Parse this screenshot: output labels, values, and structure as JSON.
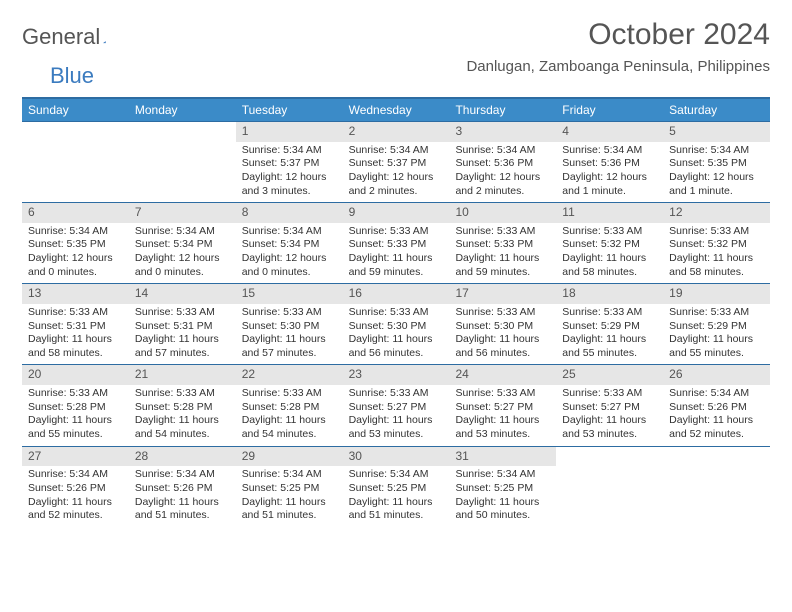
{
  "logo": {
    "word1": "General",
    "word2": "Blue"
  },
  "title": "October 2024",
  "location": "Danlugan, Zamboanga Peninsula, Philippines",
  "colors": {
    "header_bg": "#3b8bc8",
    "header_text": "#ffffff",
    "border": "#2d6ca2",
    "daynum_bg": "#e6e6e6",
    "text": "#333333",
    "title_text": "#555555",
    "logo_gray": "#555555",
    "logo_blue": "#3b7bbf"
  },
  "day_headers": [
    "Sunday",
    "Monday",
    "Tuesday",
    "Wednesday",
    "Thursday",
    "Friday",
    "Saturday"
  ],
  "weeks": [
    [
      {
        "num": "",
        "lines": []
      },
      {
        "num": "",
        "lines": []
      },
      {
        "num": "1",
        "lines": [
          "Sunrise: 5:34 AM",
          "Sunset: 5:37 PM",
          "Daylight: 12 hours and 3 minutes."
        ]
      },
      {
        "num": "2",
        "lines": [
          "Sunrise: 5:34 AM",
          "Sunset: 5:37 PM",
          "Daylight: 12 hours and 2 minutes."
        ]
      },
      {
        "num": "3",
        "lines": [
          "Sunrise: 5:34 AM",
          "Sunset: 5:36 PM",
          "Daylight: 12 hours and 2 minutes."
        ]
      },
      {
        "num": "4",
        "lines": [
          "Sunrise: 5:34 AM",
          "Sunset: 5:36 PM",
          "Daylight: 12 hours and 1 minute."
        ]
      },
      {
        "num": "5",
        "lines": [
          "Sunrise: 5:34 AM",
          "Sunset: 5:35 PM",
          "Daylight: 12 hours and 1 minute."
        ]
      }
    ],
    [
      {
        "num": "6",
        "lines": [
          "Sunrise: 5:34 AM",
          "Sunset: 5:35 PM",
          "Daylight: 12 hours and 0 minutes."
        ]
      },
      {
        "num": "7",
        "lines": [
          "Sunrise: 5:34 AM",
          "Sunset: 5:34 PM",
          "Daylight: 12 hours and 0 minutes."
        ]
      },
      {
        "num": "8",
        "lines": [
          "Sunrise: 5:34 AM",
          "Sunset: 5:34 PM",
          "Daylight: 12 hours and 0 minutes."
        ]
      },
      {
        "num": "9",
        "lines": [
          "Sunrise: 5:33 AM",
          "Sunset: 5:33 PM",
          "Daylight: 11 hours and 59 minutes."
        ]
      },
      {
        "num": "10",
        "lines": [
          "Sunrise: 5:33 AM",
          "Sunset: 5:33 PM",
          "Daylight: 11 hours and 59 minutes."
        ]
      },
      {
        "num": "11",
        "lines": [
          "Sunrise: 5:33 AM",
          "Sunset: 5:32 PM",
          "Daylight: 11 hours and 58 minutes."
        ]
      },
      {
        "num": "12",
        "lines": [
          "Sunrise: 5:33 AM",
          "Sunset: 5:32 PM",
          "Daylight: 11 hours and 58 minutes."
        ]
      }
    ],
    [
      {
        "num": "13",
        "lines": [
          "Sunrise: 5:33 AM",
          "Sunset: 5:31 PM",
          "Daylight: 11 hours and 58 minutes."
        ]
      },
      {
        "num": "14",
        "lines": [
          "Sunrise: 5:33 AM",
          "Sunset: 5:31 PM",
          "Daylight: 11 hours and 57 minutes."
        ]
      },
      {
        "num": "15",
        "lines": [
          "Sunrise: 5:33 AM",
          "Sunset: 5:30 PM",
          "Daylight: 11 hours and 57 minutes."
        ]
      },
      {
        "num": "16",
        "lines": [
          "Sunrise: 5:33 AM",
          "Sunset: 5:30 PM",
          "Daylight: 11 hours and 56 minutes."
        ]
      },
      {
        "num": "17",
        "lines": [
          "Sunrise: 5:33 AM",
          "Sunset: 5:30 PM",
          "Daylight: 11 hours and 56 minutes."
        ]
      },
      {
        "num": "18",
        "lines": [
          "Sunrise: 5:33 AM",
          "Sunset: 5:29 PM",
          "Daylight: 11 hours and 55 minutes."
        ]
      },
      {
        "num": "19",
        "lines": [
          "Sunrise: 5:33 AM",
          "Sunset: 5:29 PM",
          "Daylight: 11 hours and 55 minutes."
        ]
      }
    ],
    [
      {
        "num": "20",
        "lines": [
          "Sunrise: 5:33 AM",
          "Sunset: 5:28 PM",
          "Daylight: 11 hours and 55 minutes."
        ]
      },
      {
        "num": "21",
        "lines": [
          "Sunrise: 5:33 AM",
          "Sunset: 5:28 PM",
          "Daylight: 11 hours and 54 minutes."
        ]
      },
      {
        "num": "22",
        "lines": [
          "Sunrise: 5:33 AM",
          "Sunset: 5:28 PM",
          "Daylight: 11 hours and 54 minutes."
        ]
      },
      {
        "num": "23",
        "lines": [
          "Sunrise: 5:33 AM",
          "Sunset: 5:27 PM",
          "Daylight: 11 hours and 53 minutes."
        ]
      },
      {
        "num": "24",
        "lines": [
          "Sunrise: 5:33 AM",
          "Sunset: 5:27 PM",
          "Daylight: 11 hours and 53 minutes."
        ]
      },
      {
        "num": "25",
        "lines": [
          "Sunrise: 5:33 AM",
          "Sunset: 5:27 PM",
          "Daylight: 11 hours and 53 minutes."
        ]
      },
      {
        "num": "26",
        "lines": [
          "Sunrise: 5:34 AM",
          "Sunset: 5:26 PM",
          "Daylight: 11 hours and 52 minutes."
        ]
      }
    ],
    [
      {
        "num": "27",
        "lines": [
          "Sunrise: 5:34 AM",
          "Sunset: 5:26 PM",
          "Daylight: 11 hours and 52 minutes."
        ]
      },
      {
        "num": "28",
        "lines": [
          "Sunrise: 5:34 AM",
          "Sunset: 5:26 PM",
          "Daylight: 11 hours and 51 minutes."
        ]
      },
      {
        "num": "29",
        "lines": [
          "Sunrise: 5:34 AM",
          "Sunset: 5:25 PM",
          "Daylight: 11 hours and 51 minutes."
        ]
      },
      {
        "num": "30",
        "lines": [
          "Sunrise: 5:34 AM",
          "Sunset: 5:25 PM",
          "Daylight: 11 hours and 51 minutes."
        ]
      },
      {
        "num": "31",
        "lines": [
          "Sunrise: 5:34 AM",
          "Sunset: 5:25 PM",
          "Daylight: 11 hours and 50 minutes."
        ]
      },
      {
        "num": "",
        "lines": []
      },
      {
        "num": "",
        "lines": []
      }
    ]
  ]
}
